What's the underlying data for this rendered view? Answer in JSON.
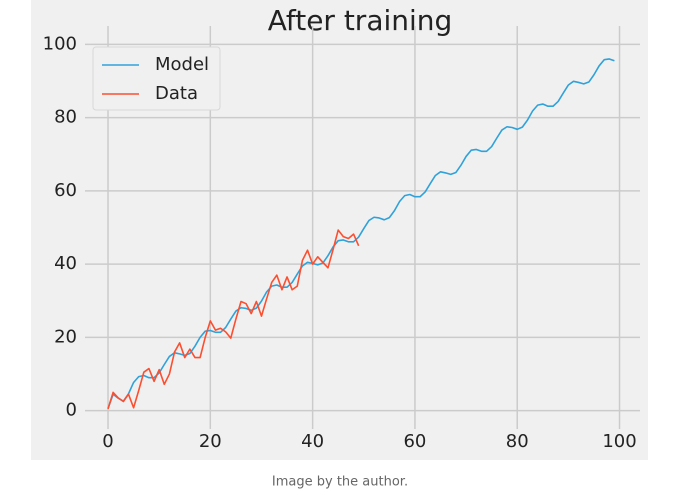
{
  "chart_data": {
    "type": "line",
    "title": "After training",
    "grid": true,
    "legend": "upper left",
    "xlim": [
      -4.5,
      104
    ],
    "ylim": [
      -5,
      105
    ],
    "xticks": [
      0,
      20,
      40,
      60,
      80,
      100
    ],
    "yticks": [
      0,
      20,
      40,
      60,
      80,
      100
    ],
    "series": [
      {
        "name": "Model",
        "color": "#30a2da",
        "x": [
          0,
          1,
          2,
          3,
          4,
          5,
          6,
          7,
          8,
          9,
          10,
          11,
          12,
          13,
          14,
          15,
          16,
          17,
          18,
          19,
          20,
          21,
          22,
          23,
          24,
          25,
          26,
          27,
          28,
          29,
          30,
          31,
          32,
          33,
          34,
          35,
          36,
          37,
          38,
          39,
          40,
          41,
          42,
          43,
          44,
          45,
          46,
          47,
          48,
          49,
          50,
          51,
          52,
          53,
          54,
          55,
          56,
          57,
          58,
          59,
          60,
          61,
          62,
          63,
          64,
          65,
          66,
          67,
          68,
          69,
          70,
          71,
          72,
          73,
          74,
          75,
          76,
          77,
          78,
          79,
          80,
          81,
          82,
          83,
          84,
          85,
          86,
          87,
          88,
          89,
          90,
          91,
          92,
          93,
          94,
          95,
          96,
          97,
          98,
          99
        ],
        "values": [
          0.6,
          4.5,
          3.4,
          2.6,
          4.6,
          7.7,
          9.3,
          9.6,
          9.0,
          9.0,
          10.3,
          12.6,
          14.8,
          15.8,
          15.5,
          15.1,
          15.6,
          17.6,
          20.0,
          21.7,
          21.9,
          21.4,
          21.4,
          22.7,
          25.0,
          27.2,
          28.1,
          27.9,
          27.4,
          28.0,
          29.9,
          32.4,
          34.0,
          34.3,
          33.7,
          33.7,
          35.0,
          37.3,
          39.5,
          40.5,
          40.2,
          39.8,
          40.3,
          42.3,
          44.7,
          46.4,
          46.6,
          46.1,
          46.1,
          47.4,
          49.7,
          51.9,
          52.8,
          52.6,
          52.1,
          52.7,
          54.6,
          57.1,
          58.7,
          59.0,
          58.4,
          58.4,
          59.7,
          62.0,
          64.2,
          65.2,
          64.9,
          64.5,
          65.0,
          67.0,
          69.4,
          71.1,
          71.3,
          70.8,
          70.8,
          72.1,
          74.4,
          76.6,
          77.5,
          77.3,
          76.8,
          77.4,
          79.3,
          81.8,
          83.4,
          83.7,
          83.1,
          83.1,
          84.4,
          86.7,
          88.9,
          89.9,
          89.6,
          89.2,
          89.7,
          91.7,
          94.1,
          95.8,
          96.0,
          95.5
        ]
      },
      {
        "name": "Data",
        "color": "#fc4f30",
        "x": [
          0,
          1,
          2,
          3,
          4,
          5,
          6,
          7,
          8,
          9,
          10,
          11,
          12,
          13,
          14,
          15,
          16,
          17,
          18,
          19,
          20,
          21,
          22,
          23,
          24,
          25,
          26,
          27,
          28,
          29,
          30,
          31,
          32,
          33,
          34,
          35,
          36,
          37,
          38,
          39,
          40,
          41,
          42,
          43,
          44,
          45,
          46,
          47,
          48,
          49
        ],
        "values": [
          0.5,
          5.0,
          3.5,
          2.5,
          4.5,
          0.8,
          5.5,
          10.5,
          11.5,
          8.0,
          11.2,
          7.2,
          10.0,
          16.0,
          18.5,
          14.5,
          16.8,
          14.5,
          14.5,
          20.0,
          24.5,
          22.0,
          22.5,
          21.5,
          19.8,
          25.0,
          29.8,
          29.2,
          26.5,
          29.8,
          25.8,
          30.5,
          35.0,
          37.0,
          33.0,
          36.5,
          33.0,
          34.0,
          41.0,
          43.8,
          40.0,
          42.0,
          40.5,
          39.0,
          44.0,
          49.3,
          47.5,
          47.0,
          48.2,
          45.0
        ]
      }
    ]
  },
  "caption": "Image by the author."
}
